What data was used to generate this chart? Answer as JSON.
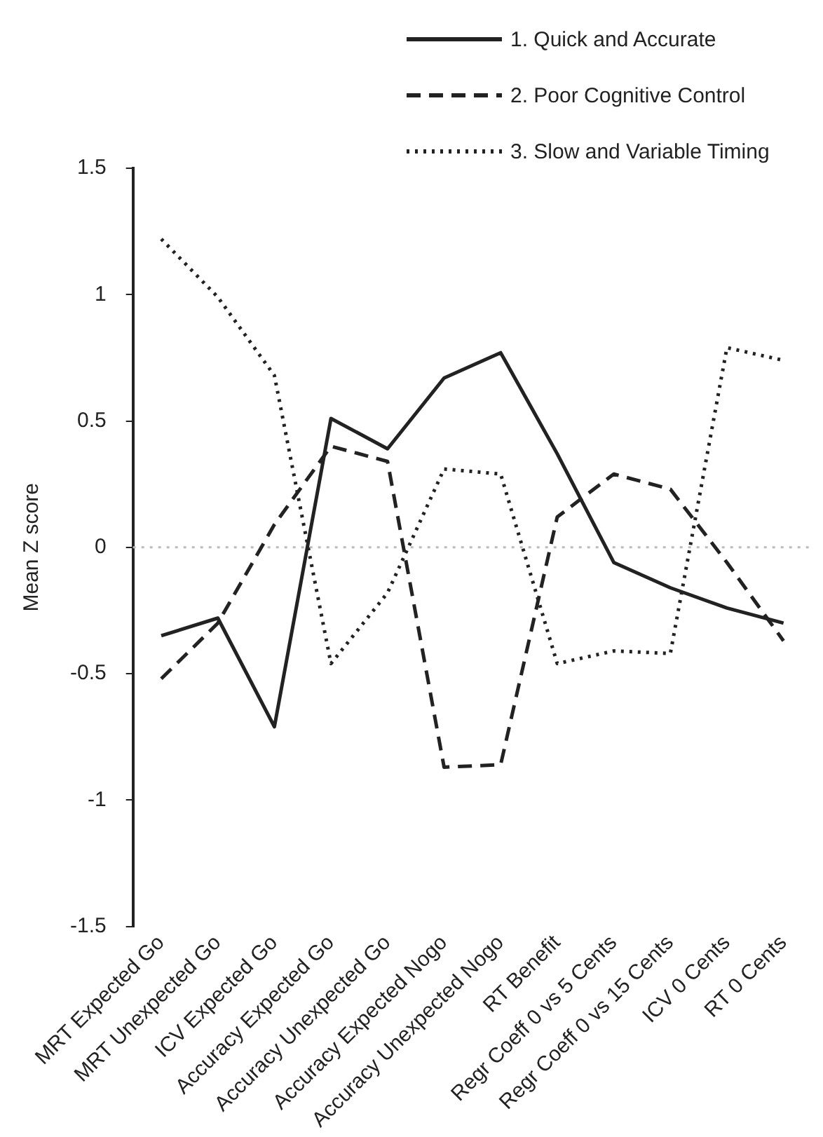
{
  "chart_data": {
    "type": "line",
    "ylabel": "Mean Z score",
    "categories": [
      "MRT Expected Go",
      "MRT Unexpected Go",
      "ICV Expected Go",
      "Accuracy Expected Go",
      "Accuracy Unexpected Go",
      "Accuracy Expected Nogo",
      "Accuracy Unexpected Nogo",
      "RT Benefit",
      "Regr Coeff 0 vs 5 Cents",
      "Regr Coeff 0 vs 15 Cents",
      "ICV 0 Cents",
      "RT 0 Cents"
    ],
    "series": [
      {
        "name": "1. Quick and Accurate",
        "color": "#222222",
        "line_style": "solid",
        "values": [
          -0.35,
          -0.28,
          -0.71,
          0.51,
          0.39,
          0.67,
          0.77,
          0.37,
          -0.06,
          -0.16,
          -0.24,
          -0.3
        ]
      },
      {
        "name": "2. Poor Cognitive Control",
        "color": "#222222",
        "line_style": "dashed",
        "values": [
          -0.52,
          -0.3,
          0.09,
          0.4,
          0.34,
          -0.87,
          -0.86,
          0.12,
          0.29,
          0.23,
          -0.06,
          -0.37
        ]
      },
      {
        "name": "3. Slow and Variable Timing",
        "color": "#222222",
        "line_style": "dotted",
        "values": [
          1.22,
          0.99,
          0.68,
          -0.46,
          -0.18,
          0.31,
          0.29,
          -0.46,
          -0.41,
          -0.42,
          0.79,
          0.74
        ]
      }
    ],
    "ylim": [
      -1.5,
      1.5
    ],
    "yticks": [
      -1.5,
      -1,
      -0.5,
      0,
      0.5,
      1,
      1.5
    ],
    "ref_lines": [
      {
        "axis": "y",
        "value": 0,
        "color": "#bbbbbb",
        "line_style": "dotted"
      }
    ],
    "grid": false,
    "legend": "top right",
    "marker": "none"
  }
}
